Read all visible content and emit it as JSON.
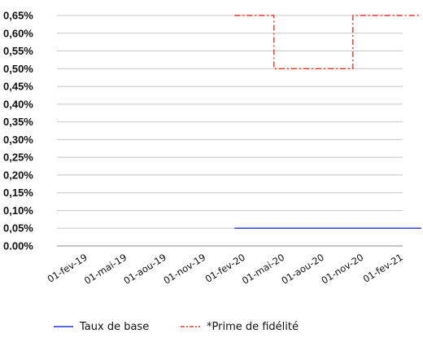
{
  "chart_data": {
    "type": "line",
    "x": [
      "01-fev-19",
      "01-mai-19",
      "01-aou-19",
      "01-nov-19",
      "01-fev-20",
      "01-mai-20",
      "01-aou-20",
      "01-nov-20",
      "01-fev-21"
    ],
    "y_ticks": [
      "0.00%",
      "0,05%",
      "0,10%",
      "0,15%",
      "0,20%",
      "0,25%",
      "0,30%",
      "0,35%",
      "0,40%",
      "0,45%",
      "0,50%",
      "0,55%",
      "0,60%",
      "0,65%"
    ],
    "ylim": [
      0,
      0.65
    ],
    "grid": true,
    "legend_position": "bottom",
    "series": [
      {
        "name": "Taux de base",
        "color": "#2233dd",
        "style": "solid",
        "points": [
          {
            "x": "01-fev-20",
            "y": 0.05
          },
          {
            "x": "end",
            "y": 0.05
          }
        ]
      },
      {
        "name": "*Prime de fidélité",
        "color": "#e8352b",
        "style": "dash-dot",
        "points": [
          {
            "x": "01-fev-20",
            "y": 0.65
          },
          {
            "x": "01-mai-20",
            "y": 0.65
          },
          {
            "x": "01-mai-20",
            "y": 0.5
          },
          {
            "x": "01-nov-20",
            "y": 0.5
          },
          {
            "x": "01-nov-20",
            "y": 0.65
          },
          {
            "x": "end",
            "y": 0.65
          }
        ]
      }
    ],
    "title": "",
    "xlabel": "",
    "ylabel": ""
  }
}
